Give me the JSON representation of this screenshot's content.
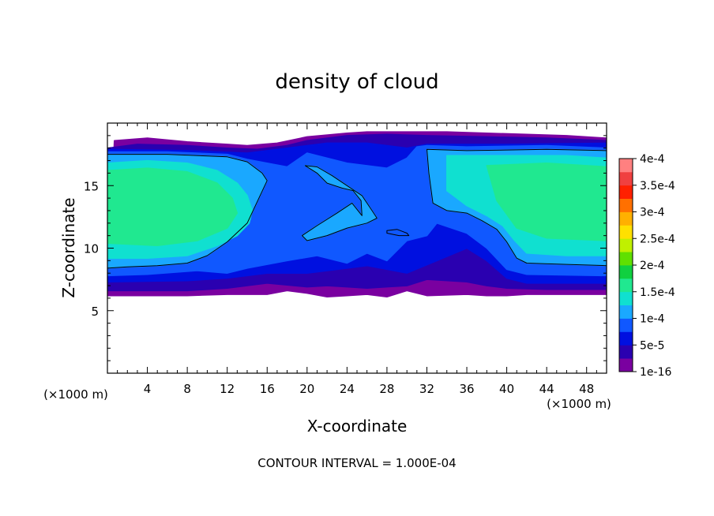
{
  "chart_data": {
    "type": "heatmap",
    "title": "density of cloud",
    "xlabel": "X-coordinate",
    "ylabel": "Z-coordinate",
    "x_unit": "(×1000 m)",
    "y_unit": "(×1000 m)",
    "xlim": [
      0,
      50
    ],
    "ylim": [
      0,
      20
    ],
    "x_ticks": [
      4,
      8,
      12,
      16,
      20,
      24,
      28,
      32,
      36,
      40,
      44,
      48
    ],
    "y_ticks": [
      5,
      10,
      15
    ],
    "footer": "CONTOUR INTERVAL = 1.000E-04",
    "colorbar": {
      "labels": [
        "1e-16",
        "5e-5",
        "1e-4",
        "1.5e-4",
        "2e-4",
        "2.5e-4",
        "3e-4",
        "3.5e-4",
        "4e-4"
      ],
      "colors": [
        "#7a00a0",
        "#2a00b0",
        "#0010e0",
        "#1058ff",
        "#1aa8ff",
        "#10e0d0",
        "#20e890",
        "#10d040",
        "#60e000",
        "#c0f000",
        "#ffe000",
        "#ffb000",
        "#ff7000",
        "#ff2000",
        "#f04040",
        "#ff8080"
      ]
    },
    "layers": [
      {
        "level": "1e-16",
        "color": "#7a00a0",
        "x": [
          0.7,
          4,
          8,
          12,
          14,
          17,
          20,
          24,
          26,
          30,
          34,
          38,
          42,
          46,
          50,
          50,
          46,
          42,
          40,
          38,
          36,
          32,
          30,
          28,
          26,
          24,
          22,
          20,
          18,
          16,
          12,
          8,
          4,
          0
        ],
        "z": [
          18.6,
          18.8,
          18.5,
          18.3,
          18.2,
          18.4,
          18.9,
          19.2,
          19.3,
          19.3,
          19.3,
          19.2,
          19.1,
          19.0,
          18.8,
          6.3,
          6.3,
          6.3,
          6.2,
          6.2,
          6.3,
          6.2,
          6.6,
          6.1,
          6.3,
          6.2,
          6.1,
          6.4,
          6.6,
          6.3,
          6.3,
          6.2,
          6.2,
          6.2
        ]
      },
      {
        "level": "2.5e-5",
        "color": "#2a00b0",
        "x": [
          3,
          8,
          12,
          15,
          18,
          20,
          24,
          28,
          32,
          38,
          44,
          50,
          50,
          44,
          40,
          38,
          36,
          32,
          30,
          28,
          26,
          24,
          22,
          20,
          16,
          12,
          8,
          4,
          0,
          0
        ],
        "z": [
          18.3,
          18.2,
          18.0,
          17.9,
          18.2,
          18.6,
          19.0,
          19.1,
          19.0,
          18.9,
          18.8,
          18.6,
          6.7,
          6.7,
          6.8,
          7.0,
          7.3,
          7.5,
          7.0,
          6.9,
          6.8,
          6.9,
          7.0,
          6.9,
          7.2,
          6.8,
          6.6,
          6.6,
          6.6,
          18.0
        ]
      },
      {
        "level": "5e-5",
        "color": "#0010e0",
        "x": [
          0,
          8,
          14,
          18,
          22,
          26,
          30,
          32,
          40,
          50,
          50,
          42,
          40,
          38,
          36,
          33,
          30,
          26,
          20,
          16,
          12,
          8,
          0
        ],
        "z": [
          17.9,
          17.8,
          17.6,
          18.0,
          18.4,
          18.4,
          18.0,
          18.3,
          18.3,
          18.4,
          7.2,
          7.2,
          7.6,
          9.0,
          10.0,
          9.0,
          8.0,
          8.6,
          8.0,
          8.0,
          7.6,
          7.4,
          7.3
        ]
      },
      {
        "level": "7.5e-5",
        "color": "#1058ff",
        "x": [
          0,
          6,
          12,
          14,
          16,
          18,
          20,
          24,
          28,
          30,
          31,
          32,
          36,
          44,
          50,
          50,
          42,
          40,
          38,
          36,
          33,
          32,
          30,
          28,
          26,
          24,
          21,
          18,
          14,
          12,
          9,
          4,
          0
        ],
        "z": [
          17.7,
          17.7,
          17.5,
          17.1,
          16.8,
          16.5,
          17.6,
          16.8,
          16.4,
          17.2,
          18.1,
          18.2,
          18.1,
          18.2,
          18.0,
          7.8,
          7.9,
          8.3,
          10.0,
          11.2,
          12.0,
          11.0,
          10.6,
          9.0,
          9.6,
          8.8,
          9.4,
          9.0,
          8.4,
          8.0,
          8.2,
          7.9,
          7.8
        ]
      },
      {
        "level": "1e-4",
        "color": "#1aa8ff",
        "x": [
          0,
          6,
          12,
          14,
          15.5,
          16,
          14,
          12,
          10,
          8,
          5,
          2,
          0
        ],
        "z": [
          17.5,
          17.5,
          17.3,
          16.9,
          16.0,
          15.4,
          12.0,
          10.5,
          9.4,
          8.8,
          8.6,
          8.5,
          8.4
        ]
      },
      {
        "level": "1e-4",
        "color": "#1aa8ff",
        "x": [
          32,
          36,
          44,
          50,
          50,
          46,
          42,
          41,
          40,
          39,
          37.5,
          36,
          34,
          32.6,
          32.2
        ],
        "z": [
          17.9,
          17.8,
          17.9,
          17.8,
          8.6,
          8.7,
          8.8,
          9.2,
          10.5,
          11.5,
          12.2,
          12.8,
          13.0,
          13.6,
          16.0
        ]
      },
      {
        "level": "1e-4",
        "color": "#1aa8ff",
        "x": [
          19.8,
          21,
          22.5,
          24,
          25.5,
          26.5,
          27,
          26,
          24,
          22,
          20,
          19.5,
          21,
          23,
          24.5,
          25.5,
          25.4,
          24.6,
          23.5,
          22,
          21
        ],
        "z": [
          16.6,
          16.5,
          15.8,
          15.0,
          14.2,
          13.0,
          12.4,
          12.0,
          11.6,
          11.0,
          10.6,
          11.0,
          11.8,
          12.8,
          13.6,
          12.6,
          13.8,
          14.6,
          14.8,
          15.2,
          16.0
        ]
      },
      {
        "level": "1.25e-4",
        "color": "#10e0d0",
        "x": [
          0,
          4,
          8,
          11,
          13,
          14,
          14.5,
          14.2,
          13,
          11,
          8,
          4,
          0
        ],
        "z": [
          16.8,
          17.0,
          16.8,
          16.2,
          15.2,
          14.2,
          13.0,
          12.0,
          11.0,
          10.2,
          9.4,
          9.2,
          9.2
        ]
      },
      {
        "level": "1.25e-4",
        "color": "#10e0d0",
        "x": [
          34,
          40,
          46,
          50,
          50,
          46,
          42,
          40.8,
          39.6,
          38,
          36,
          34
        ],
        "z": [
          17.4,
          17.4,
          17.4,
          17.2,
          9.4,
          9.4,
          9.6,
          10.6,
          11.8,
          12.6,
          13.4,
          14.6
        ]
      },
      {
        "level": "1.5e-4",
        "color": "#20e890",
        "x": [
          0,
          4,
          8,
          11,
          12.5,
          13,
          12,
          9,
          5,
          0
        ],
        "z": [
          16.2,
          16.4,
          16.1,
          15.2,
          14.0,
          12.8,
          11.6,
          10.6,
          10.2,
          10.4
        ]
      },
      {
        "level": "1.5e-4",
        "color": "#20e890",
        "x": [
          38,
          44,
          50,
          50,
          44,
          41,
          39
        ],
        "z": [
          16.6,
          16.8,
          16.5,
          10.6,
          10.8,
          11.6,
          13.8
        ]
      }
    ],
    "contours": [
      {
        "level": "1e-4",
        "x": [
          0,
          6,
          12,
          14,
          15.5,
          16,
          14,
          12,
          10,
          8,
          5,
          2,
          0
        ],
        "z": [
          17.5,
          17.5,
          17.3,
          16.9,
          16.0,
          15.4,
          12.0,
          10.5,
          9.4,
          8.8,
          8.6,
          8.5,
          8.4
        ]
      },
      {
        "level": "1e-4",
        "x": [
          32,
          36,
          44,
          50,
          50,
          46,
          42,
          41,
          40,
          39,
          37.5,
          36,
          34,
          32.6,
          32.2
        ],
        "z": [
          17.9,
          17.8,
          17.9,
          17.8,
          8.6,
          8.7,
          8.8,
          9.2,
          10.5,
          11.5,
          12.2,
          12.8,
          13.0,
          13.6,
          16.0
        ]
      },
      {
        "level": "1e-4",
        "x": [
          19.8,
          21,
          22.5,
          24,
          25.5,
          26.5,
          27,
          26,
          24,
          22,
          20,
          19.5,
          21,
          23,
          24.5,
          25.5,
          25.4,
          24.6,
          23.5,
          22,
          21
        ],
        "z": [
          16.6,
          16.5,
          15.8,
          15.0,
          14.2,
          13.0,
          12.4,
          12.0,
          11.6,
          11.0,
          10.6,
          11.0,
          11.8,
          12.8,
          13.6,
          12.6,
          13.8,
          14.6,
          14.8,
          15.2,
          16.0
        ]
      },
      {
        "level": "1e-4",
        "x": [
          28,
          29,
          30,
          30.2,
          29.2,
          28
        ],
        "z": [
          11.4,
          11.5,
          11.2,
          11.0,
          11.0,
          11.2
        ]
      }
    ]
  }
}
